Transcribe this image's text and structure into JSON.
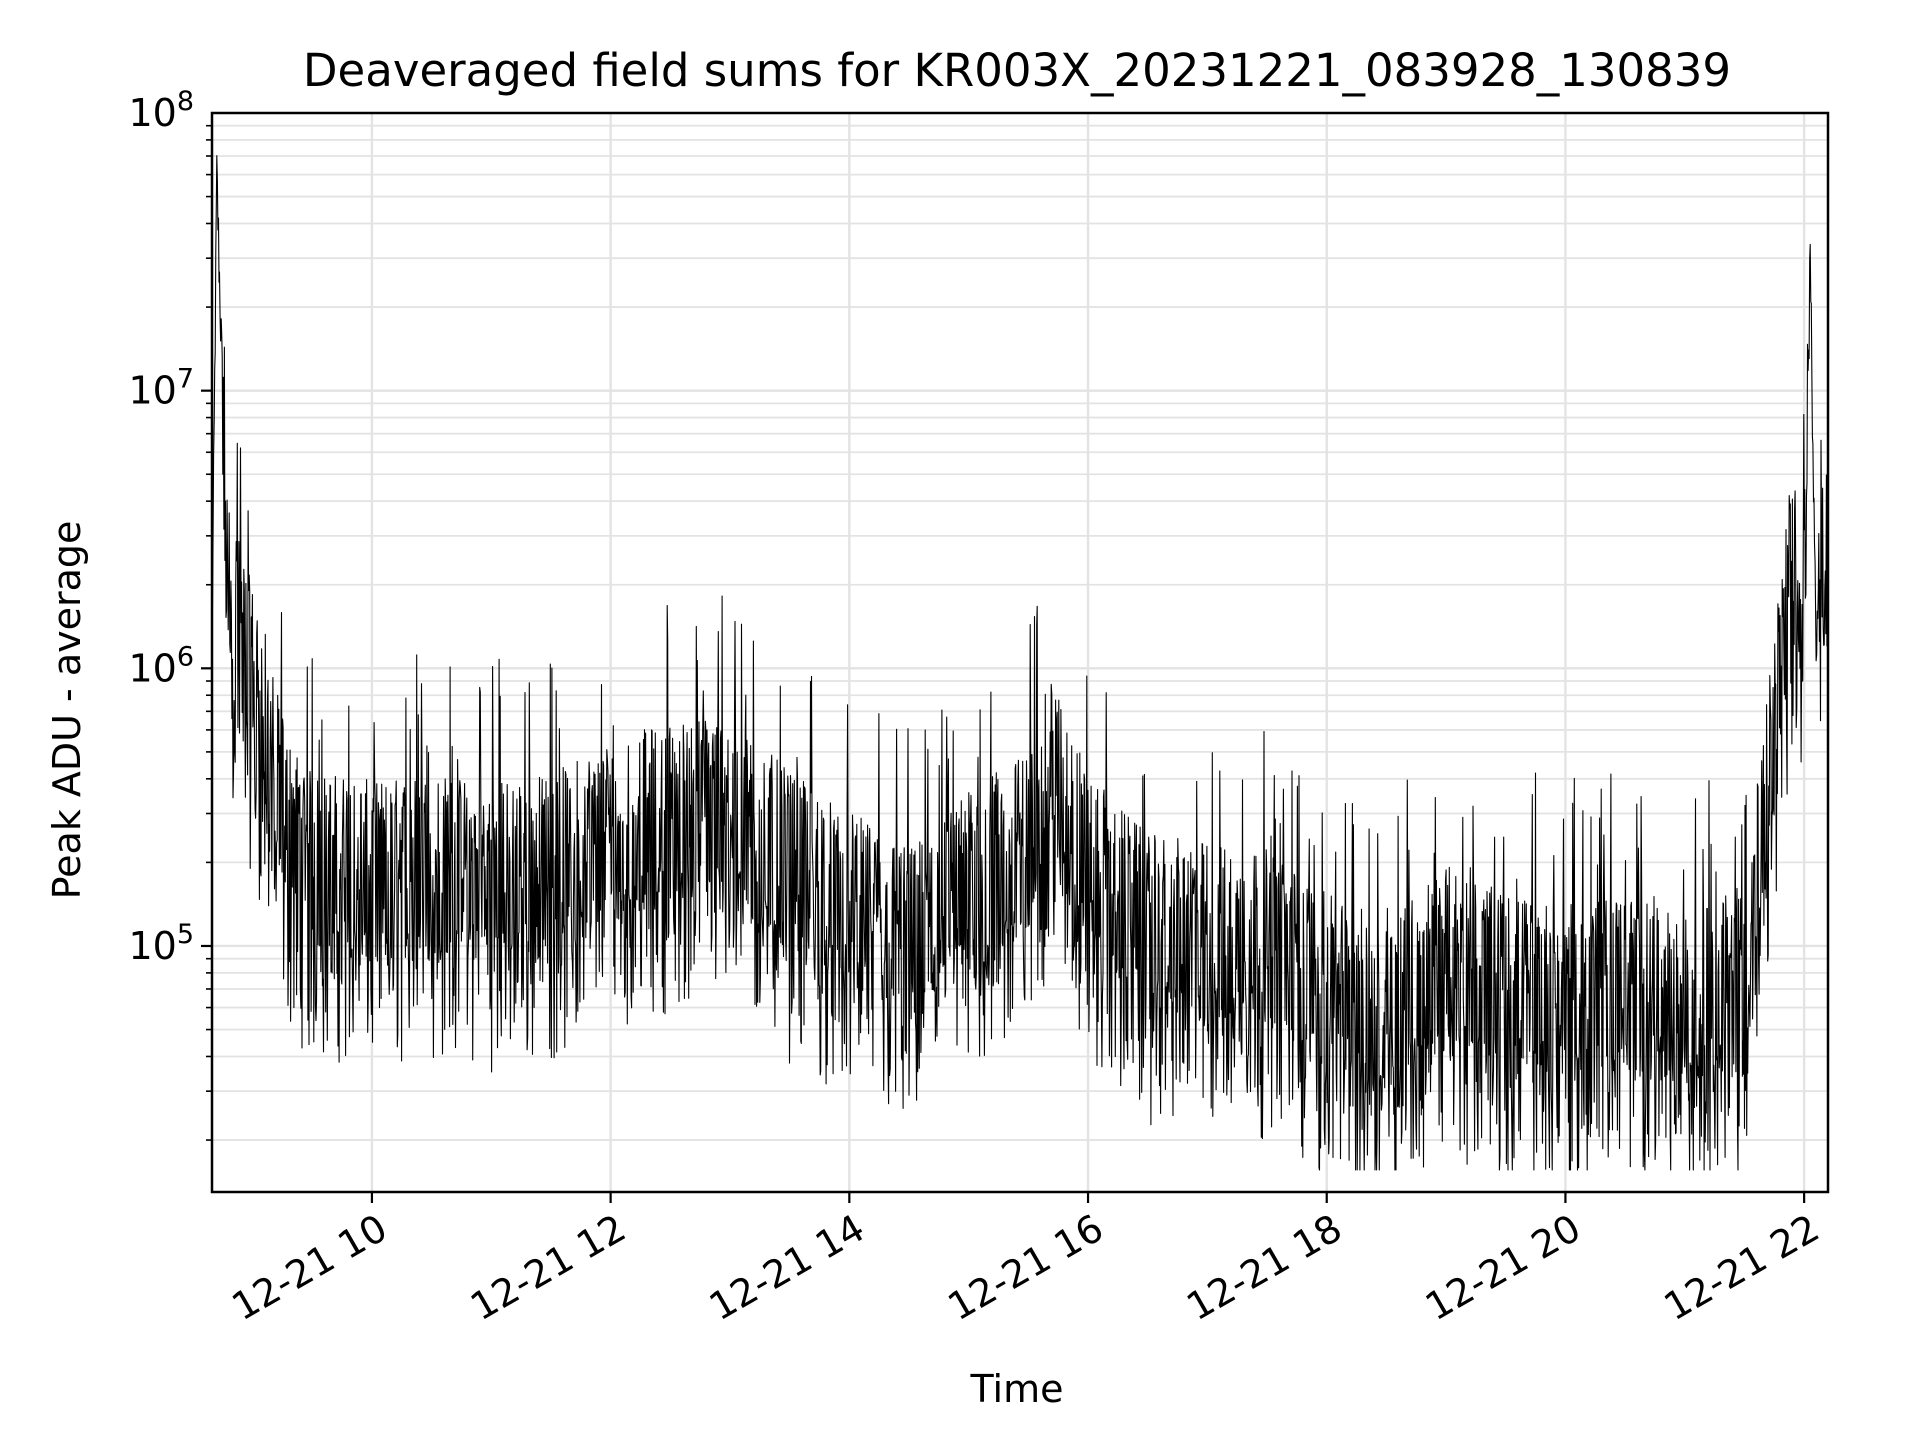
{
  "chart_data": {
    "type": "line",
    "title": "Deaveraged field sums for KR003X_20231221_083928_130839",
    "xlabel": "Time",
    "ylabel": "Peak ADU - average",
    "x_ticks": [
      "12-21 10",
      "12-21 12",
      "12-21 14",
      "12-21 16",
      "12-21 18",
      "12-21 20",
      "12-21 22"
    ],
    "y_ticks": [
      {
        "base": "10",
        "exp": "5"
      },
      {
        "base": "10",
        "exp": "6"
      },
      {
        "base": "10",
        "exp": "7"
      },
      {
        "base": "10",
        "exp": "8"
      }
    ],
    "x_range_hours": [
      8.66,
      22.2
    ],
    "y_scale": "log",
    "y_range": [
      13000,
      100000000
    ],
    "grid": true,
    "line_color": "#000000",
    "series": [
      {
        "values": [
          [
            8.66,
            1200000
          ],
          [
            8.7,
            60000000
          ],
          [
            8.8,
            1500000
          ],
          [
            8.9,
            1000000
          ],
          [
            9.0,
            700000
          ],
          [
            9.1,
            500000
          ],
          [
            9.2,
            300000
          ],
          [
            9.3,
            200000
          ],
          [
            9.5,
            150000
          ],
          [
            9.8,
            150000
          ],
          [
            10.0,
            140000
          ],
          [
            10.5,
            150000
          ],
          [
            11.0,
            140000
          ],
          [
            11.5,
            150000
          ],
          [
            12.0,
            200000
          ],
          [
            12.5,
            230000
          ],
          [
            13.0,
            250000
          ],
          [
            13.5,
            150000
          ],
          [
            14.0,
            110000
          ],
          [
            14.5,
            80000
          ],
          [
            15.0,
            130000
          ],
          [
            15.5,
            180000
          ],
          [
            15.7,
            350000
          ],
          [
            16.0,
            150000
          ],
          [
            16.5,
            90000
          ],
          [
            17.0,
            85000
          ],
          [
            17.5,
            80000
          ],
          [
            18.0,
            55000
          ],
          [
            18.5,
            45000
          ],
          [
            19.0,
            70000
          ],
          [
            19.5,
            55000
          ],
          [
            20.0,
            50000
          ],
          [
            20.5,
            55000
          ],
          [
            21.0,
            45000
          ],
          [
            21.5,
            60000
          ],
          [
            21.7,
            300000
          ],
          [
            21.8,
            900000
          ],
          [
            21.9,
            1800000
          ],
          [
            22.0,
            1300000
          ],
          [
            22.05,
            30000000
          ],
          [
            22.1,
            1500000
          ],
          [
            22.2,
            2000000
          ]
        ]
      }
    ]
  }
}
